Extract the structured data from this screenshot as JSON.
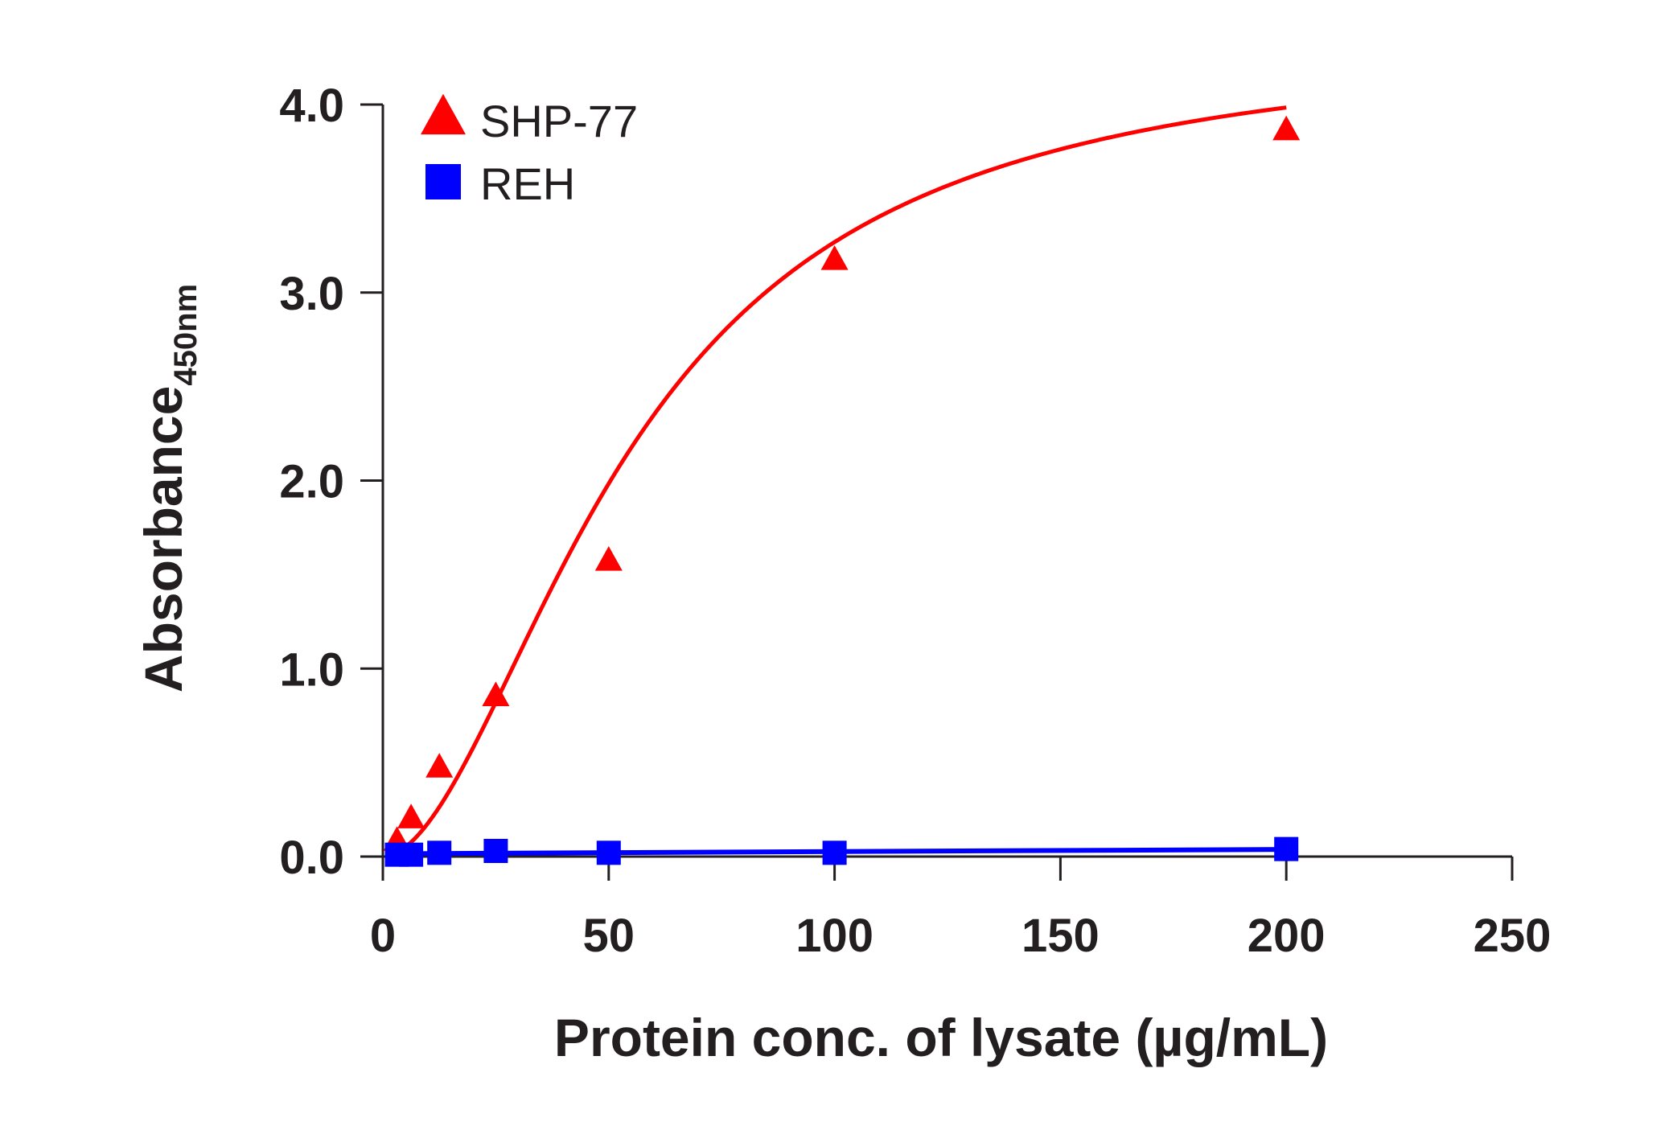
{
  "chart_data": {
    "type": "scatter",
    "title": "",
    "xlabel": "Protein conc. of lysate (µg/mL)",
    "ylabel": "Absorbance",
    "ylabel_subscript": "450nm",
    "xlim": [
      0,
      250
    ],
    "ylim": [
      0,
      4.0
    ],
    "x_ticks": [
      0,
      50,
      100,
      150,
      200,
      250
    ],
    "x_tick_labels": [
      "0",
      "50",
      "100",
      "150",
      "200",
      "250"
    ],
    "y_ticks": [
      0,
      1,
      2,
      3,
      4
    ],
    "y_tick_labels": [
      "0.0",
      "1.0",
      "2.0",
      "3.0",
      "4.0"
    ],
    "grid": false,
    "legend_position": "top-left",
    "series": [
      {
        "name": "SHP-77",
        "color": "#ff0000",
        "marker": "triangle",
        "x": [
          3.125,
          6.25,
          12.5,
          25,
          50,
          100,
          200
        ],
        "y": [
          0.08,
          0.2,
          0.47,
          0.85,
          1.57,
          3.17,
          3.86
        ],
        "fit": "sigmoid"
      },
      {
        "name": "REH",
        "color": "#0000ff",
        "marker": "square",
        "x": [
          3.125,
          6.25,
          12.5,
          25,
          50,
          100,
          200
        ],
        "y": [
          0.01,
          0.01,
          0.02,
          0.03,
          0.02,
          0.02,
          0.04
        ],
        "fit": "linear"
      }
    ]
  }
}
